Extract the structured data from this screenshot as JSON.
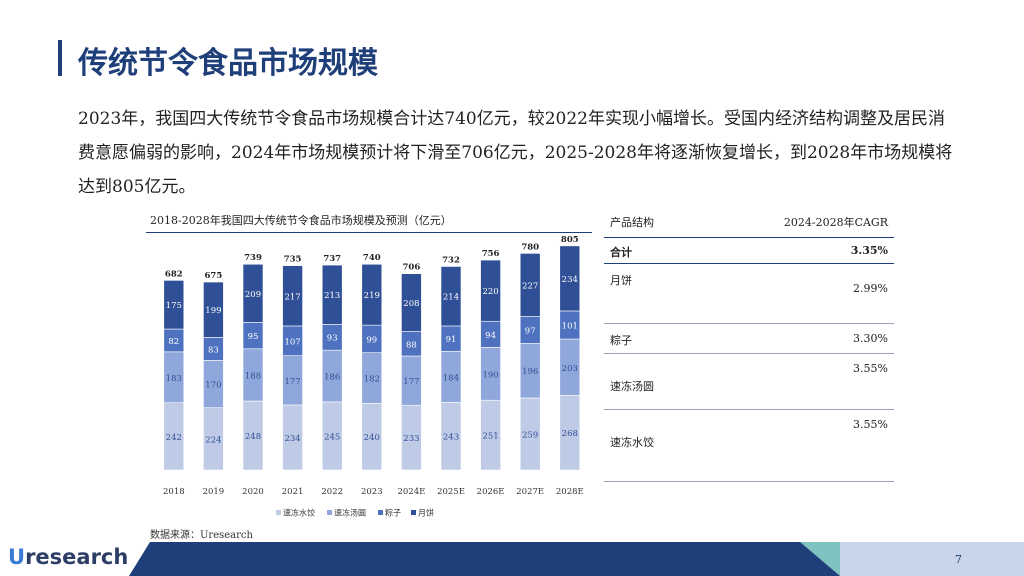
{
  "page": {
    "title": "传统节令食品市场规模",
    "summary": "2023年，我国四大传统节令食品市场规模合计达740亿元，较2022年实现小幅增长。受国内经济结构调整及居民消费意愿偏弱的影响，2024年市场规模预计将下滑至706亿元，2025-2028年将逐渐恢复增长，到2028年市场规模将达到805亿元。",
    "source": "数据来源：Uresearch",
    "page_number": "7",
    "logo_u": "U",
    "logo_rest": "research"
  },
  "colors": {
    "brand": "#1f3f7a",
    "series": [
      "#bfcbe6",
      "#8fa7da",
      "#4e72bf",
      "#2f4f96"
    ]
  },
  "chart_data": {
    "type": "bar",
    "stacked": true,
    "title": "2018-2028年我国四大传统节令食品市场规模及预测（亿元）",
    "categories": [
      "2018",
      "2019",
      "2020",
      "2021",
      "2022",
      "2023",
      "2024E",
      "2025E",
      "2026E",
      "2027E",
      "2028E"
    ],
    "series": [
      {
        "name": "速冻水饺",
        "values": [
          242,
          224,
          248,
          234,
          245,
          240,
          233,
          243,
          251,
          259,
          268
        ]
      },
      {
        "name": "速冻汤圆",
        "values": [
          183,
          170,
          188,
          177,
          186,
          182,
          177,
          184,
          190,
          196,
          203
        ]
      },
      {
        "name": "粽子",
        "values": [
          82,
          83,
          95,
          107,
          93,
          99,
          88,
          91,
          94,
          97,
          101
        ]
      },
      {
        "name": "月饼",
        "values": [
          175,
          199,
          209,
          217,
          213,
          219,
          208,
          214,
          220,
          227,
          234
        ]
      }
    ],
    "totals": [
      682,
      675,
      739,
      735,
      737,
      740,
      706,
      732,
      756,
      780,
      805
    ],
    "ylim": [
      0,
      820
    ],
    "legend": "bottom",
    "grid": false
  },
  "table": {
    "header": [
      "产品结构",
      "2024-2028年CAGR"
    ],
    "rows": [
      {
        "label": "合计",
        "value": "3.35%",
        "total": true
      },
      {
        "label": "月饼",
        "value": "2.99%"
      },
      {
        "label": "粽子",
        "value": "3.30%"
      },
      {
        "label": "速冻汤圆",
        "value": "3.55%"
      },
      {
        "label": "速冻水饺",
        "value": "3.55%"
      }
    ]
  }
}
